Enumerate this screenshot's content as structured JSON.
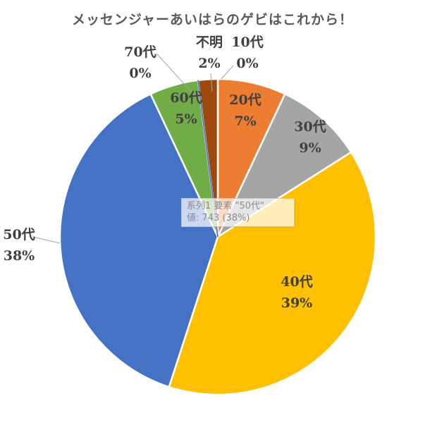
{
  "chart_data": {
    "type": "pie",
    "title": "メッセンジャーあいはらのゲビはこれから！",
    "series_name": "系列1",
    "categories": [
      "10代",
      "20代",
      "30代",
      "40代",
      "50代",
      "60代",
      "70代",
      "不明"
    ],
    "values_pct": [
      0,
      7,
      9,
      39,
      38,
      5,
      0,
      2
    ],
    "known_values": {
      "50代": 743
    },
    "colors": [
      "#4472C4",
      "#ED7D31",
      "#A5A5A5",
      "#FFC000",
      "#4472C4",
      "#70AD47",
      "#4472C4",
      "#9E480E"
    ],
    "slice_border_color": "#FFFFFF",
    "leader_line_color": "#A6A6A6",
    "label_color": "#404040",
    "title_color": "#595959",
    "start_angle_deg": 0,
    "direction": "clockwise",
    "visible_zero_slivers": [
      "70代"
    ],
    "legend": "none"
  },
  "tooltip": {
    "line1": "系列1 要素 \"50代\"",
    "line2": "値: 743 (38%)"
  }
}
